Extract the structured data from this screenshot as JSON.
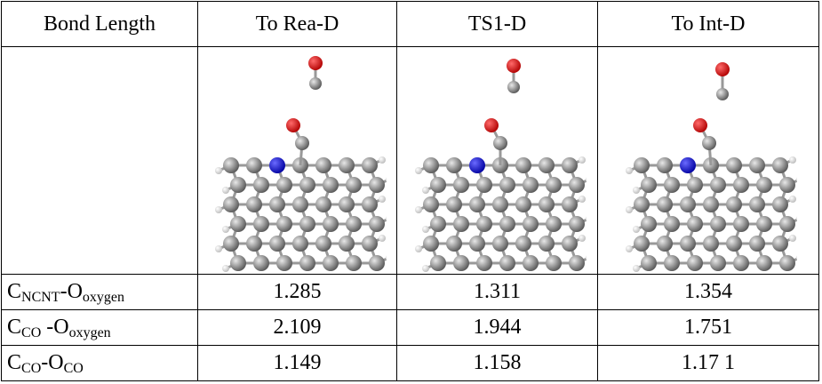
{
  "table": {
    "header": [
      "Bond Length",
      "To Rea-D",
      "TS1-D",
      "To Int-D"
    ],
    "rows": [
      {
        "label": [
          "C",
          "NCNT",
          "-O",
          "oxygen"
        ],
        "values": [
          "1.285",
          "1.311",
          "1.354"
        ]
      },
      {
        "label": [
          "C",
          "CO",
          " -O",
          "oxygen"
        ],
        "values": [
          "2.109",
          "1.944",
          "1.751"
        ]
      },
      {
        "label": [
          "C",
          "CO",
          "-O",
          "CO"
        ],
        "values": [
          "1.149",
          "1.158",
          "1.17 1"
        ]
      }
    ]
  }
}
